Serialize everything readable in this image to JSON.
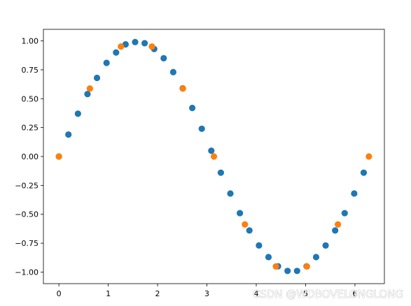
{
  "chart_data": {
    "type": "scatter",
    "title": "",
    "xlabel": "",
    "ylabel": "",
    "xlim": [
      -0.314,
      6.597
    ],
    "ylim": [
      -1.1,
      1.1
    ],
    "grid": false,
    "x_ticks": [
      0,
      1,
      2,
      3,
      4,
      5,
      6
    ],
    "y_ticks": [
      1.0,
      0.75,
      0.5,
      0.25,
      0.0,
      -0.25,
      -0.5,
      -0.75,
      -1.0
    ],
    "x_tick_labels": [
      "0",
      "1",
      "2",
      "3",
      "4",
      "5",
      "6"
    ],
    "y_tick_labels": [
      "1.00",
      "0.75",
      "0.50",
      "0.25",
      "0.00",
      "−0.25",
      "−0.50",
      "−0.75",
      "−1.00"
    ],
    "series": [
      {
        "color": "#1f77b4",
        "x": [
          0.0,
          0.193,
          0.386,
          0.579,
          0.772,
          0.966,
          1.159,
          1.352,
          1.545,
          1.738,
          1.931,
          2.124,
          2.317,
          2.51,
          2.703,
          2.896,
          3.089,
          3.282,
          3.475,
          3.668,
          3.861,
          4.055,
          4.248,
          4.441,
          4.634,
          4.827,
          5.02,
          5.213,
          5.406,
          5.599,
          5.792,
          5.985,
          6.178
        ],
        "y": [
          0.0,
          0.19,
          0.37,
          0.54,
          0.68,
          0.81,
          0.9,
          0.97,
          0.99,
          0.98,
          0.93,
          0.85,
          0.73,
          0.59,
          0.42,
          0.24,
          0.05,
          -0.14,
          -0.32,
          -0.49,
          -0.64,
          -0.77,
          -0.87,
          -0.95,
          -0.99,
          -0.99,
          -0.95,
          -0.87,
          -0.77,
          -0.64,
          -0.49,
          -0.32,
          -0.14
        ]
      },
      {
        "color": "#ff7f0e",
        "x": [
          0.0,
          0.628,
          1.257,
          1.885,
          2.513,
          3.142,
          3.77,
          4.398,
          5.027,
          5.655,
          6.283
        ],
        "y": [
          0.0,
          0.588,
          0.951,
          0.951,
          0.588,
          0.0,
          -0.588,
          -0.951,
          -0.951,
          -0.588,
          0.0
        ]
      }
    ]
  },
  "watermark": {
    "text": "CSDN @WDBOVELONGLONG"
  }
}
